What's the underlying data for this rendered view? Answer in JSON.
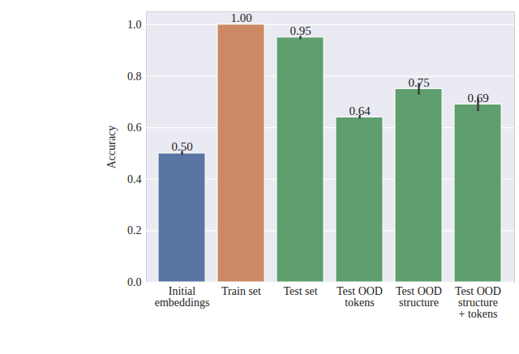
{
  "chart_data": {
    "type": "bar",
    "y_label": "Accuracy",
    "categories": [
      "Initial\nembeddings",
      "Train set",
      "Test set",
      "Test OOD\ntokens",
      "Test OOD\nstructure",
      "Test OOD\nstructure\n+ tokens"
    ],
    "values": [
      0.5,
      1.0,
      0.95,
      0.64,
      0.75,
      0.69
    ],
    "value_labels": [
      "0.50",
      "1.00",
      "0.95",
      "0.64",
      "0.75",
      "0.69"
    ],
    "error_low": [
      0.492,
      1.0,
      0.942,
      0.634,
      0.727,
      0.663
    ],
    "error_high": [
      0.508,
      1.0,
      0.955,
      0.648,
      0.772,
      0.712
    ],
    "colors": [
      "#5975a4",
      "#cc8963",
      "#5f9e6e",
      "#5f9e6e",
      "#5f9e6e",
      "#5f9e6e"
    ],
    "ylim": [
      0,
      1.05
    ],
    "yticks": [
      {
        "value": 0,
        "label": "0.0"
      },
      {
        "value": 0.2,
        "label": "0.2"
      },
      {
        "value": 0.4,
        "label": "0.4"
      },
      {
        "value": 0.6,
        "label": "0.6"
      },
      {
        "value": 0.8,
        "label": "0.8"
      },
      {
        "value": 1.0,
        "label": "1.0"
      }
    ],
    "grid": true,
    "data_labels": true
  }
}
